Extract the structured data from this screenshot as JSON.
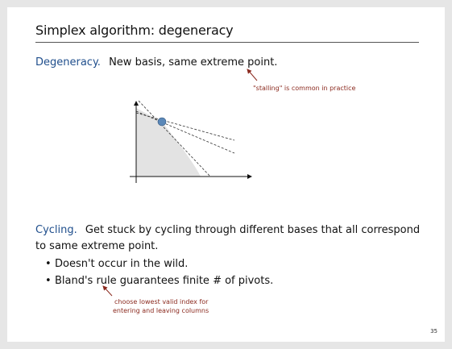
{
  "slide": {
    "title": "Simplex algorithm: degeneracy",
    "degeneracy": {
      "keyword": "Degeneracy.",
      "text": "New basis, same extreme point.",
      "note": "\"stalling\" is common in practice"
    },
    "cycling": {
      "keyword": "Cycling.",
      "text_line1": "Get stuck by cycling through different bases that all correspond",
      "text_line2": "to same extreme point."
    },
    "bullets": [
      "Doesn't occur in the wild.",
      "Bland's rule guarantees finite # of pivots."
    ],
    "bland_note_line1": "choose lowest valid index for",
    "bland_note_line2": "entering and leaving columns",
    "page_number": "35"
  },
  "colors": {
    "keyword": "#1f4e8c",
    "note": "#8b2a1f",
    "feasible_region": "#e3e3e3",
    "vertex": "#5b88b8"
  }
}
